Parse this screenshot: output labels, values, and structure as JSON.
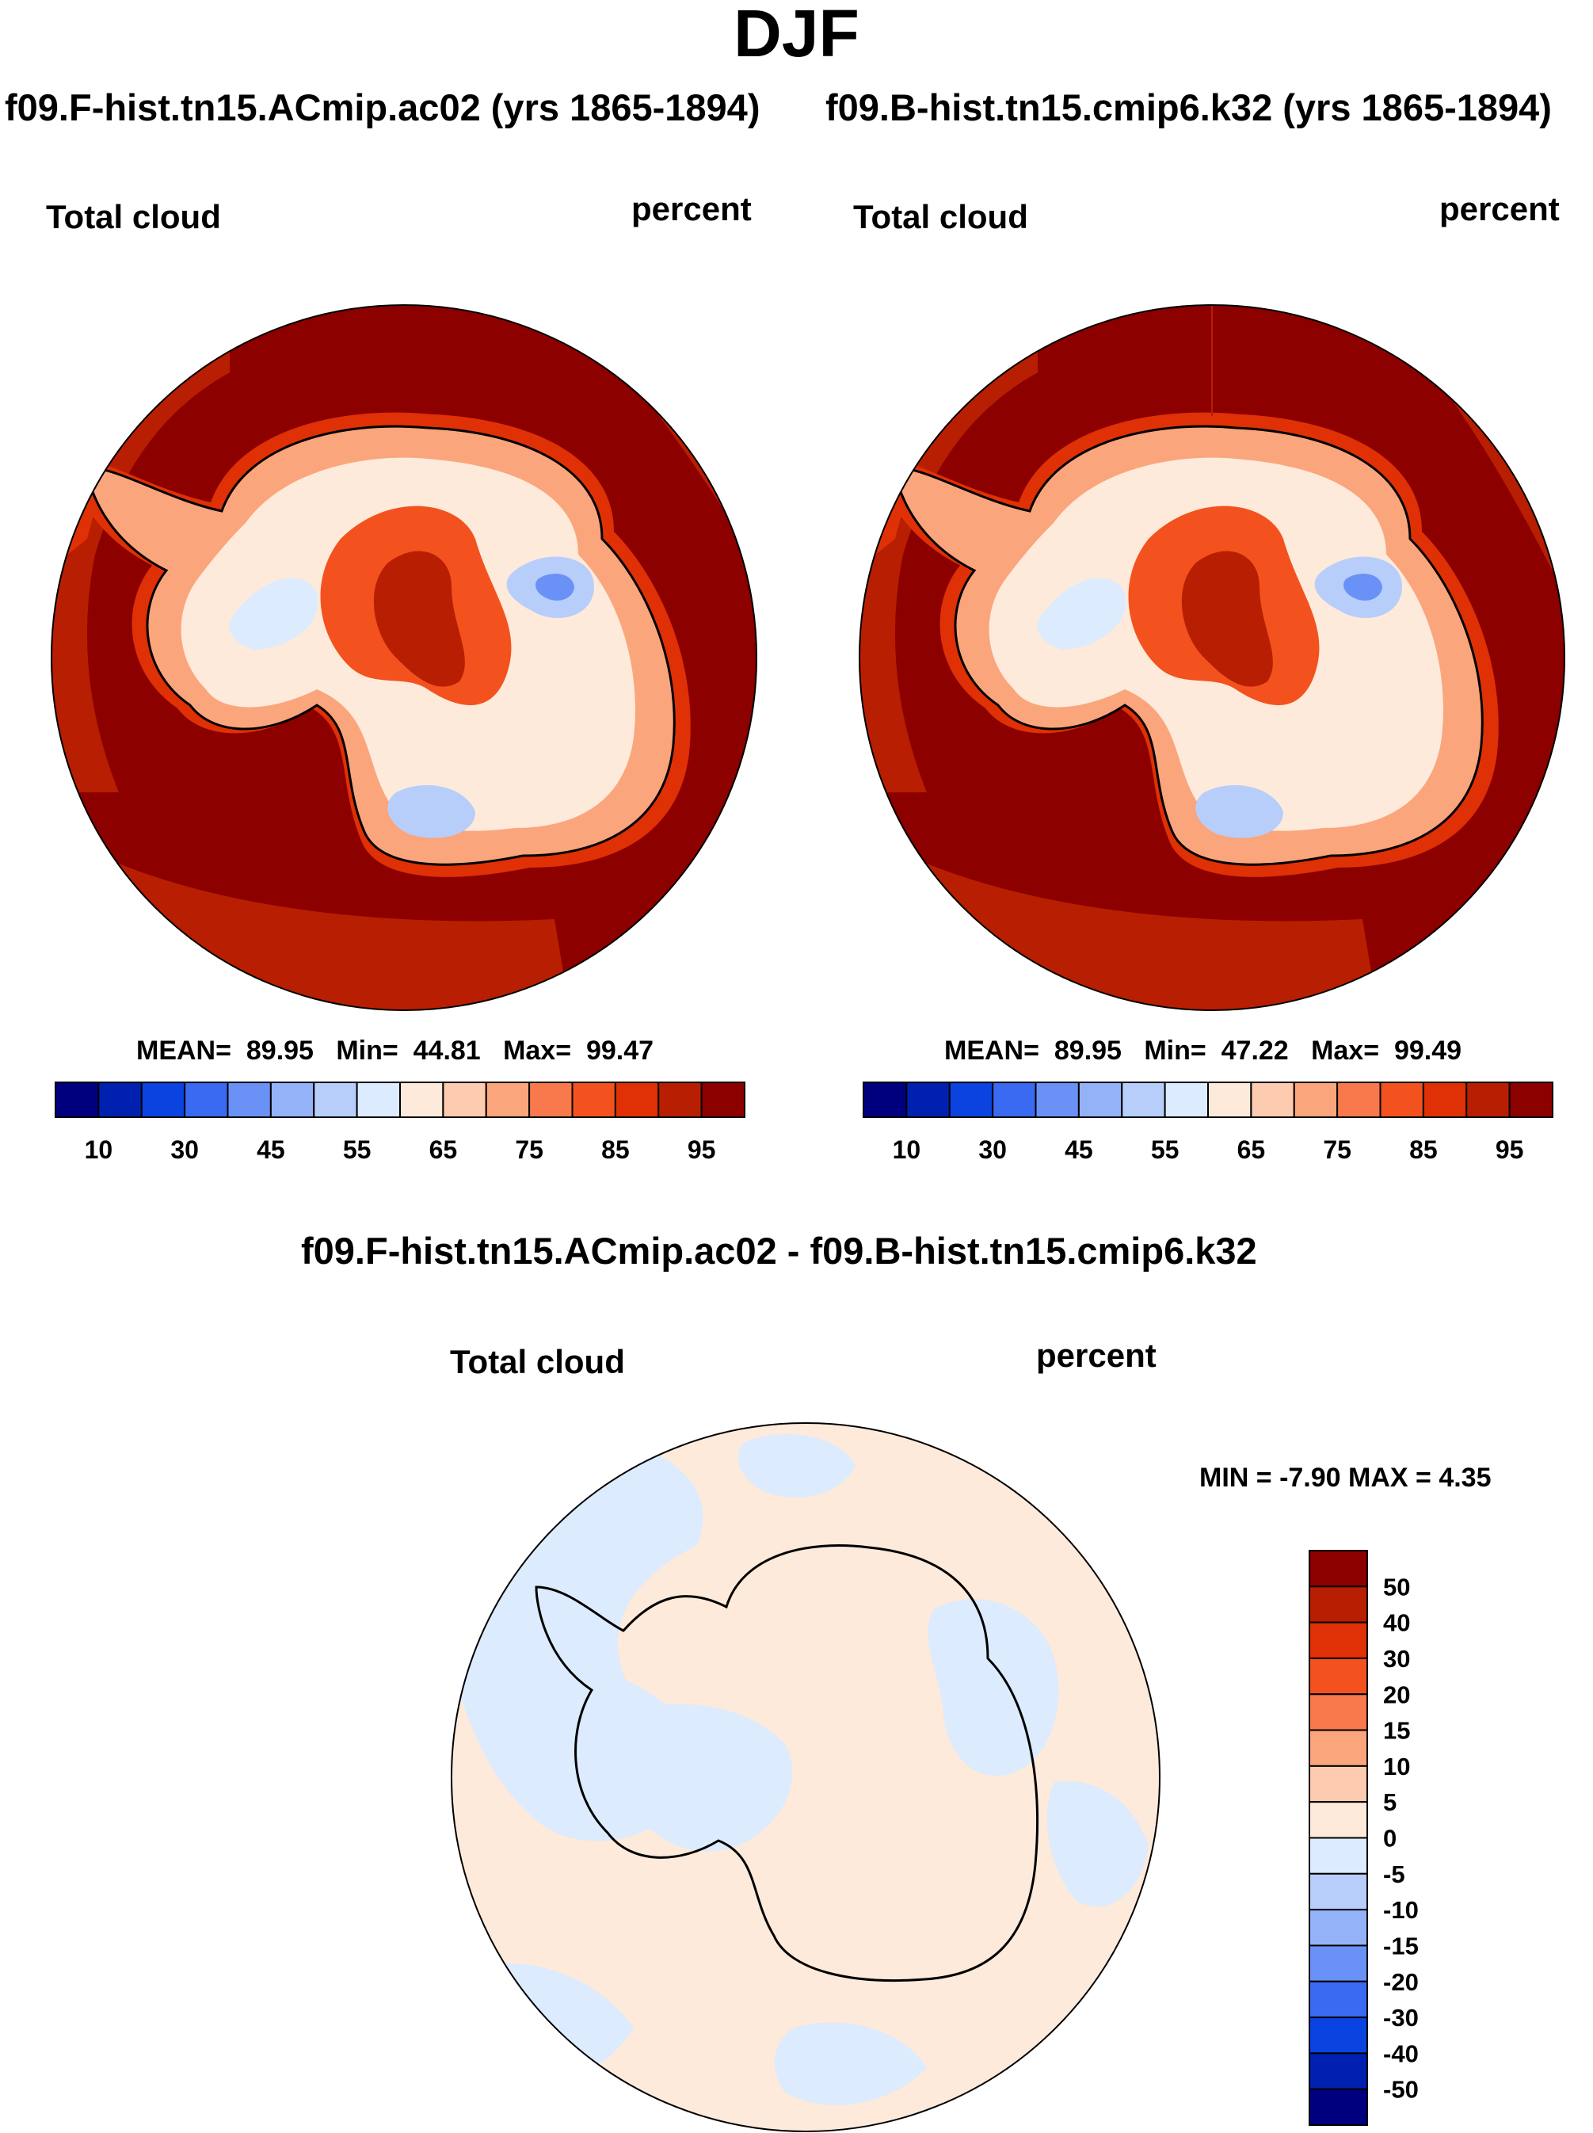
{
  "title": "DJF",
  "colors": {
    "abs_scale": [
      "#00007f",
      "#0021b0",
      "#0a43e0",
      "#3a6af2",
      "#6a92f6",
      "#94b2f8",
      "#b8cefa",
      "#dcebfd",
      "#feeadb",
      "#fdcbb0",
      "#fba57c",
      "#f87a4c",
      "#f3521f",
      "#e03006",
      "#b81e02",
      "#8c0000"
    ],
    "diff_scale": [
      "#00007f",
      "#0021b0",
      "#0a43e0",
      "#3a6af2",
      "#6a92f6",
      "#94b2f8",
      "#b8cefa",
      "#dcebfd",
      "#feeadb",
      "#fdcbb0",
      "#fba57c",
      "#f87a4c",
      "#f3521f",
      "#e03006",
      "#b81e02",
      "#8c0000"
    ]
  },
  "chart_data": [
    {
      "type": "heatmap",
      "projection": "south polar stereographic",
      "title": "f09.F-hist.tn15.ACmip.ac02 (yrs 1865-1894)",
      "variable": "Total cloud",
      "units": "percent",
      "stats": {
        "mean_label": "MEAN=",
        "mean": "89.95",
        "min_label": "Min=",
        "min": "44.81",
        "max_label": "Max=",
        "max": "99.47"
      },
      "colorbar_levels": [
        10,
        15,
        20,
        25,
        30,
        35,
        40,
        45,
        50,
        55,
        60,
        65,
        70,
        75,
        80,
        85,
        90,
        95
      ],
      "colorbar_tick_labels": [
        "10",
        "30",
        "45",
        "55",
        "65",
        "75",
        "85",
        "95"
      ]
    },
    {
      "type": "heatmap",
      "projection": "south polar stereographic",
      "title": "f09.B-hist.tn15.cmip6.k32 (yrs 1865-1894)",
      "variable": "Total cloud",
      "units": "percent",
      "stats": {
        "mean_label": "MEAN=",
        "mean": "89.95",
        "min_label": "Min=",
        "min": "47.22",
        "max_label": "Max=",
        "max": "99.49"
      },
      "colorbar_levels": [
        10,
        15,
        20,
        25,
        30,
        35,
        40,
        45,
        50,
        55,
        60,
        65,
        70,
        75,
        80,
        85,
        90,
        95
      ],
      "colorbar_tick_labels": [
        "10",
        "30",
        "45",
        "55",
        "65",
        "75",
        "85",
        "95"
      ]
    },
    {
      "type": "heatmap",
      "projection": "south polar stereographic",
      "title": "f09.F-hist.tn15.ACmip.ac02 - f09.B-hist.tn15.cmip6.k32",
      "variable": "Total cloud",
      "units": "percent",
      "stats": {
        "text": "MIN =  -7.90 MAX =   4.35",
        "min": -7.9,
        "max": 4.35
      },
      "colorbar_levels": [
        -50,
        -40,
        -30,
        -20,
        -15,
        -10,
        -5,
        0,
        5,
        10,
        15,
        20,
        30,
        40,
        50
      ],
      "colorbar_tick_labels": [
        "50",
        "40",
        "30",
        "20",
        "15",
        "10",
        "5",
        "0",
        "-5",
        "-10",
        "-15",
        "-20",
        "-30",
        "-40",
        "-50"
      ]
    }
  ]
}
